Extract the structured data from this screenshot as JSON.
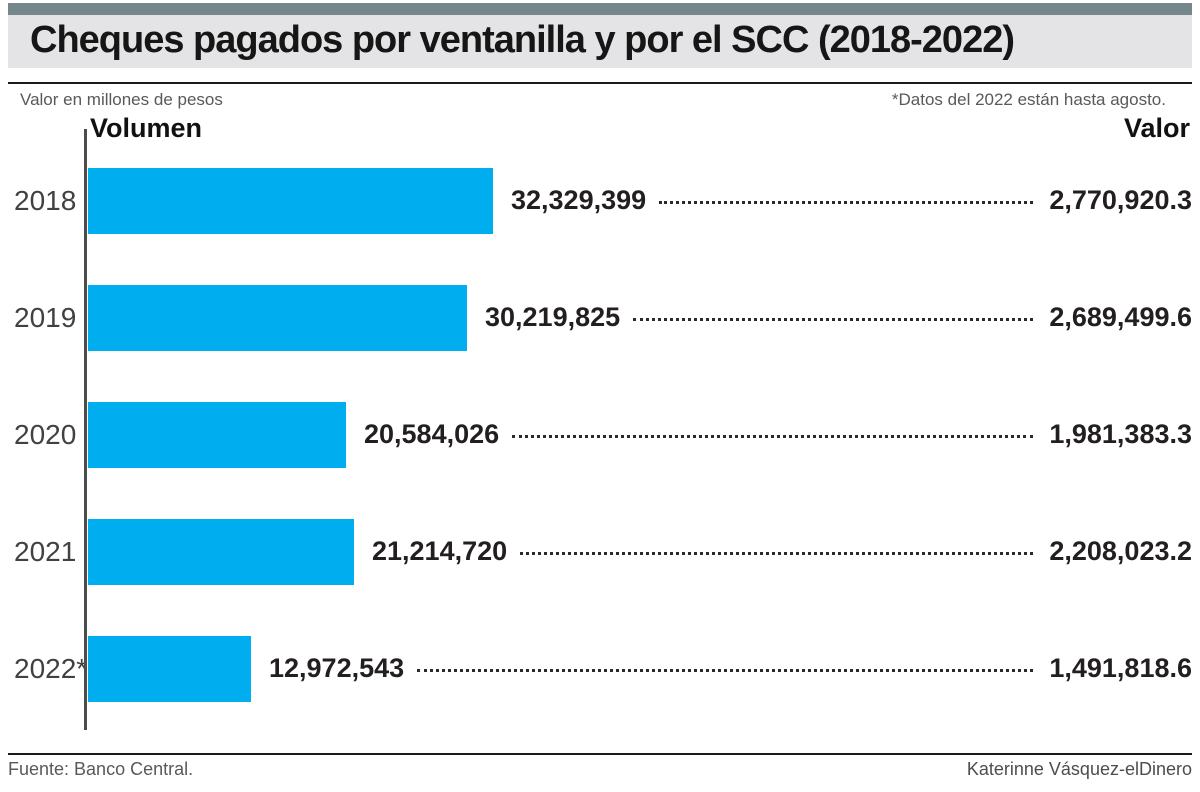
{
  "header": {
    "title": "Cheques pagados por ventanilla y por el SCC (2018-2022)",
    "accent_bar_color": "#75878B",
    "band_color": "#E4E4E6"
  },
  "subheader": {
    "left_note": "Valor en millones de pesos",
    "right_note": "*Datos del 2022 están hasta agosto."
  },
  "columns": {
    "volume_label": "Volumen",
    "value_label": "Valor"
  },
  "chart_data": {
    "type": "bar",
    "orientation": "horizontal",
    "bar_color": "#00AEEF",
    "title": "Cheques pagados por ventanilla y por el SCC (2018-2022)",
    "xlabel": "Volumen",
    "ylabel": "",
    "xlim": [
      0,
      32329399
    ],
    "legend": "none",
    "grid": false,
    "categories": [
      "2018",
      "2019",
      "2020",
      "2021",
      "2022*"
    ],
    "series": [
      {
        "name": "Volumen",
        "values": [
          32329399,
          30219825,
          20584026,
          21214720,
          12972543
        ]
      },
      {
        "name": "Valor (millones de pesos)",
        "values": [
          2770920.3,
          2689499.6,
          1981383.3,
          2208023.2,
          1491818.6
        ]
      }
    ],
    "rows": [
      {
        "year": "2018",
        "volume": 32329399,
        "volume_label": "32,329,399",
        "value_label": "2,770,920.3"
      },
      {
        "year": "2019",
        "volume": 30219825,
        "volume_label": "30,219,825",
        "value_label": "2,689,499.6"
      },
      {
        "year": "2020",
        "volume": 20584026,
        "volume_label": "20,584,026",
        "value_label": "1,981,383.3"
      },
      {
        "year": "2021",
        "volume": 21214720,
        "volume_label": "21,214,720",
        "value_label": "2,208,023.2"
      },
      {
        "year": "2022*",
        "volume": 12972543,
        "volume_label": "12,972,543",
        "value_label": "1,491,818.6"
      }
    ]
  },
  "footer": {
    "source": "Fuente: Banco Central.",
    "credit": "Katerinne Vásquez-elDinero"
  }
}
